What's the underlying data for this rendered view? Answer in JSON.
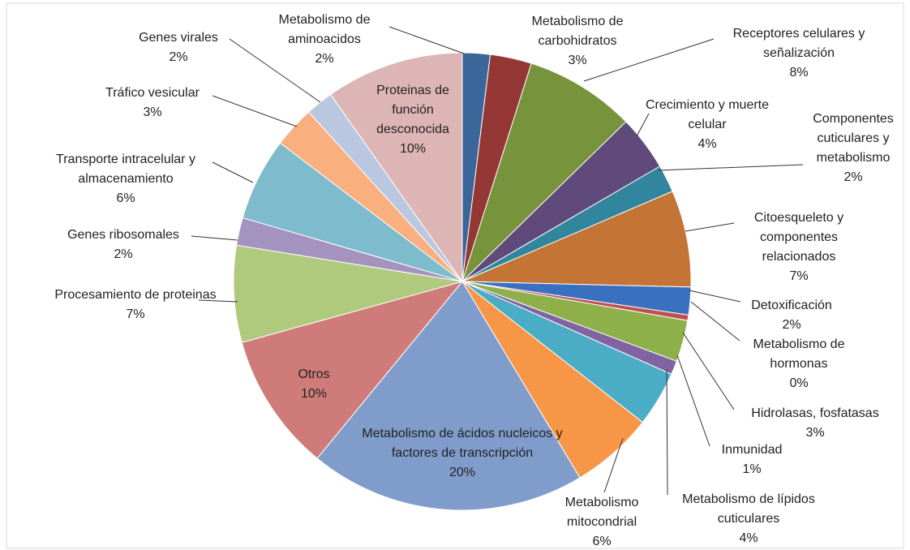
{
  "chart_data": {
    "type": "pie",
    "categories": [
      "Metabolismo de aminoacidos",
      "Metabolismo de carbohidratos",
      "Receptores celulares y señalización",
      "Crecimiento y muerte celular",
      "Componentes cuticulares y metabolismo",
      "Citoesqueleto y componentes relacionados",
      "Detoxificación",
      "Metabolismo de hormonas",
      "Hidrolasas, fosfatasas",
      "Inmunidad",
      "Metabolismo de lípidos cuticulares",
      "Metabolismo mitocondrial",
      "Metabolismo de ácidos nucleicos y factores de transcripción",
      "Otros",
      "Procesamiento de proteinas",
      "Genes ribosomales",
      "Transporte intracelular y almacenamiento",
      "Tráfico vesicular",
      "Genes virales",
      "Proteinas de función desconocida"
    ],
    "values": [
      2,
      3,
      8,
      4,
      2,
      7,
      2,
      0.4,
      3,
      1,
      4,
      6,
      20,
      10,
      7,
      2,
      6,
      3,
      2,
      10
    ],
    "value_labels": [
      "2%",
      "3%",
      "8%",
      "4%",
      "2%",
      "7%",
      "2%",
      "0%",
      "3%",
      "1%",
      "4%",
      "6%",
      "20%",
      "10%",
      "7%",
      "2%",
      "6%",
      "3%",
      "2%",
      "10%"
    ],
    "colors": [
      "#3A6699",
      "#953735",
      "#77933C",
      "#604A7B",
      "#31859C",
      "#C47435",
      "#3A70C0",
      "#C0504D",
      "#8EB04B",
      "#8064A2",
      "#4BACC6",
      "#F79646",
      "#7F9CCB",
      "#CF7B79",
      "#AFC97D",
      "#A493BF",
      "#7DBBCD",
      "#F9AF7E",
      "#B9C7E0",
      "#DDB5B4"
    ]
  }
}
